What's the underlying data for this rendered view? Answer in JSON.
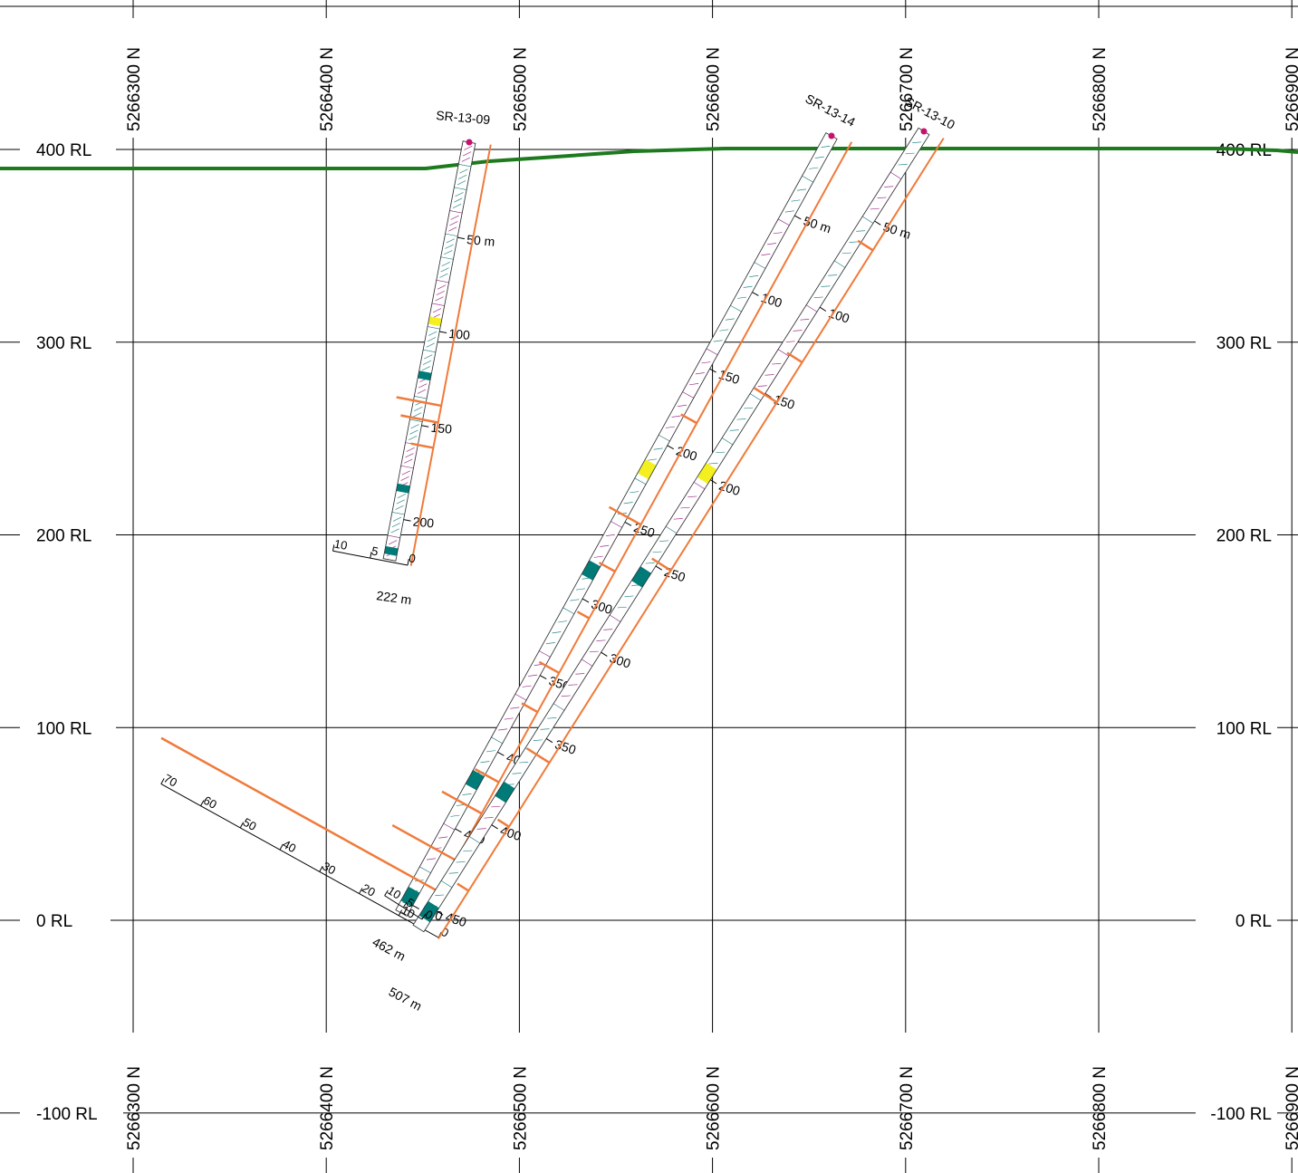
{
  "section": {
    "elevation_labels": [
      {
        "value": 400,
        "text": "400 RL"
      },
      {
        "value": 300,
        "text": "300 RL"
      },
      {
        "value": 200,
        "text": "200 RL"
      },
      {
        "value": 100,
        "text": "100 RL"
      },
      {
        "value": 0,
        "text": "0 RL"
      },
      {
        "value": -100,
        "text": "-100 RL"
      }
    ],
    "northing_labels": [
      {
        "value": 5266300,
        "text": "5266300 N"
      },
      {
        "value": 5266400,
        "text": "5266400 N"
      },
      {
        "value": 5266500,
        "text": "5266500 N"
      },
      {
        "value": 5266600,
        "text": "5266600 N"
      },
      {
        "value": 5266700,
        "text": "5266700 N"
      },
      {
        "value": 5266800,
        "text": "5266800 N"
      },
      {
        "value": 5266900,
        "text": "5266900 N"
      }
    ],
    "colors": {
      "topography": "#1e7a1e",
      "assay_trace": "#f07a3a",
      "collar": "#c8106e",
      "grid": "#000000",
      "intercept": "#007b78",
      "highlight": "#f4f020",
      "lith_purple": "#a0308c",
      "lith_teal": "#2a8a8a"
    },
    "holes": [
      {
        "id": "SR-13-09",
        "collar_label": "SR-13-09",
        "total_depth_label": "222 m",
        "depth_ticks": [
          "50 m",
          "100",
          "150",
          "200"
        ],
        "scale_ticks": [
          "0",
          "5",
          "10"
        ]
      },
      {
        "id": "SR-13-14",
        "collar_label": "SR-13-14",
        "total_depth_label": "507 m",
        "depth_ticks": [
          "50 m",
          "100",
          "150",
          "200",
          "250",
          "300",
          "350",
          "400",
          "450",
          "500"
        ],
        "scale_ticks": [
          "0",
          "5",
          "10",
          "20",
          "30",
          "40",
          "50",
          "60",
          "70"
        ]
      },
      {
        "id": "SR-13-10",
        "collar_label": "SR-13-10",
        "total_depth_label": "462 m",
        "depth_ticks": [
          "50 m",
          "100",
          "150",
          "200",
          "250",
          "300",
          "350",
          "400",
          "450"
        ],
        "scale_ticks": [
          "0",
          "5",
          "10"
        ]
      }
    ]
  }
}
